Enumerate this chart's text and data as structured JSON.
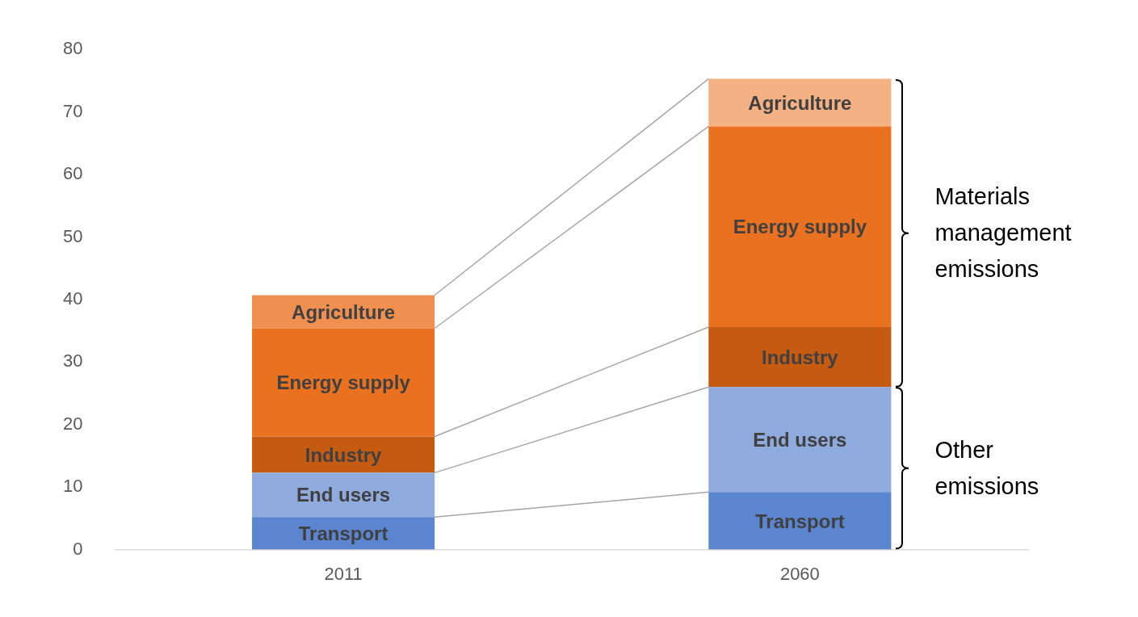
{
  "chart_data": {
    "type": "bar",
    "stacked": true,
    "categories": [
      "2011",
      "2060"
    ],
    "series": [
      {
        "name": "Transport",
        "color": "#5b86cf",
        "values": [
          5.2,
          9.2
        ]
      },
      {
        "name": "End users",
        "color": "#8faadc",
        "values": [
          7.1,
          16.8
        ]
      },
      {
        "name": "Industry",
        "color": "#c55a11",
        "values": [
          5.8,
          9.6
        ]
      },
      {
        "name": "Energy supply",
        "color": "#e97120",
        "values": [
          17.3,
          32.1
        ]
      },
      {
        "name": "Agriculture",
        "colors": [
          "#f09050",
          "#f4b183"
        ],
        "values": [
          5.3,
          7.6
        ]
      }
    ],
    "ylim": [
      0,
      80
    ],
    "yticks": [
      0,
      10,
      20,
      30,
      40,
      50,
      60,
      70,
      80
    ],
    "grid": false,
    "legend": false,
    "annotations": [
      "Materials management emissions",
      "Other emissions"
    ]
  }
}
